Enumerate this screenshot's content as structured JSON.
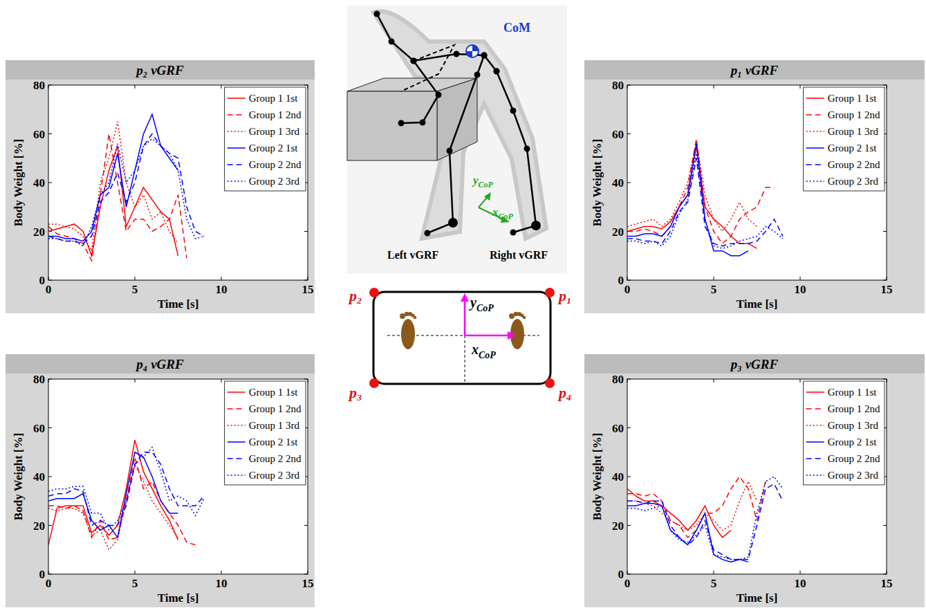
{
  "chart_data": [
    {
      "type": "line",
      "title": "p₂ vGRF",
      "x_label": "Time [s]",
      "y_label": "Body Weight [%]",
      "xlim": [
        0,
        15
      ],
      "ylim": [
        0,
        80
      ],
      "xticks": [
        0,
        5,
        10,
        15
      ],
      "yticks": [
        0,
        20,
        40,
        60,
        80
      ],
      "legend": "upper right",
      "series": [
        {
          "name": "Group 1 1st",
          "color": "#ff0000",
          "line_style": "solid",
          "x": [
            0,
            0.5,
            1,
            1.5,
            2,
            2.5,
            3,
            3.5,
            4,
            4.5,
            5,
            5.5,
            6,
            6.5,
            7,
            7.5
          ],
          "values": [
            20,
            21,
            22,
            23,
            20,
            10,
            30,
            45,
            55,
            22,
            30,
            38,
            33,
            28,
            25,
            10
          ]
        },
        {
          "name": "Group 1 2nd",
          "color": "#ff0000",
          "line_style": "dashed",
          "x": [
            0,
            0.5,
            1,
            1.5,
            2,
            2.5,
            3,
            3.5,
            4,
            4.5,
            5,
            5.5,
            6,
            6.5,
            7,
            7.5,
            8
          ],
          "values": [
            22,
            19,
            18,
            17,
            15,
            8,
            35,
            60,
            40,
            20,
            25,
            25,
            20,
            22,
            25,
            35,
            9
          ]
        },
        {
          "name": "Group 1 3rd",
          "color": "#ff0000",
          "line_style": "dotted",
          "x": [
            0,
            0.5,
            1,
            1.5,
            2,
            2.5,
            3,
            3.5,
            4,
            4.5,
            5,
            5.5,
            6,
            6.5,
            7,
            7.5
          ],
          "values": [
            23,
            23,
            22,
            21,
            18,
            12,
            40,
            50,
            65,
            40,
            30,
            35,
            25,
            28,
            20,
            15
          ]
        },
        {
          "name": "Group 2 1st",
          "color": "#0000ff",
          "line_style": "solid",
          "x": [
            0,
            0.5,
            1,
            1.5,
            2,
            2.5,
            3,
            3.5,
            4,
            4.5,
            5,
            5.5,
            6,
            6.5,
            7,
            7.5
          ],
          "values": [
            18,
            18,
            17,
            17,
            16,
            20,
            35,
            38,
            52,
            30,
            45,
            60,
            68,
            55,
            50,
            45
          ]
        },
        {
          "name": "Group 2 2nd",
          "color": "#0000ff",
          "line_style": "dashed",
          "x": [
            0,
            0.5,
            1,
            1.5,
            2,
            2.5,
            3,
            3.5,
            4,
            4.5,
            5,
            5.5,
            6,
            6.5,
            7,
            7.5,
            8,
            8.5,
            9
          ],
          "values": [
            18,
            17,
            16,
            16,
            15,
            18,
            32,
            36,
            44,
            32,
            40,
            55,
            60,
            55,
            52,
            50,
            30,
            20,
            18
          ]
        },
        {
          "name": "Group 2 3rd",
          "color": "#0000ff",
          "line_style": "dotted",
          "x": [
            0,
            0.5,
            1,
            1.5,
            2,
            2.5,
            3,
            3.5,
            4,
            4.5,
            5,
            5.5,
            6,
            6.5,
            7,
            7.5,
            8,
            8.5,
            9
          ],
          "values": [
            17,
            17,
            16,
            16,
            14,
            22,
            35,
            40,
            56,
            40,
            45,
            55,
            58,
            55,
            52,
            45,
            25,
            17,
            18
          ]
        }
      ]
    },
    {
      "type": "line",
      "title": "p₁ vGRF",
      "x_label": "Time [s]",
      "y_label": "Body Weight [%]",
      "xlim": [
        0,
        15
      ],
      "ylim": [
        0,
        80
      ],
      "xticks": [
        0,
        5,
        10,
        15
      ],
      "yticks": [
        0,
        20,
        40,
        60,
        80
      ],
      "legend": "upper right",
      "series": [
        {
          "name": "Group 1 1st",
          "color": "#ff0000",
          "line_style": "solid",
          "x": [
            0,
            0.5,
            1,
            1.5,
            2,
            2.5,
            3,
            3.5,
            4,
            4.5,
            5,
            5.5,
            6,
            6.5,
            7,
            7.5
          ],
          "values": [
            20,
            21,
            22,
            22,
            21,
            24,
            30,
            35,
            55,
            30,
            25,
            22,
            18,
            15,
            15,
            13
          ]
        },
        {
          "name": "Group 1 2nd",
          "color": "#ff0000",
          "line_style": "dashed",
          "x": [
            0,
            0.5,
            1,
            1.5,
            2,
            2.5,
            3,
            3.5,
            4,
            4.5,
            5,
            5.5,
            6,
            6.5,
            7,
            7.5,
            8,
            8.5
          ],
          "values": [
            20,
            20,
            21,
            20,
            18,
            22,
            30,
            38,
            58,
            30,
            20,
            15,
            18,
            25,
            28,
            30,
            38,
            38
          ]
        },
        {
          "name": "Group 1 3rd",
          "color": "#ff0000",
          "line_style": "dotted",
          "x": [
            0,
            0.5,
            1,
            1.5,
            2,
            2.5,
            3,
            3.5,
            4,
            4.5,
            5,
            5.5,
            6,
            6.5,
            7,
            7.5
          ],
          "values": [
            22,
            23,
            24,
            25,
            22,
            25,
            32,
            40,
            57,
            35,
            25,
            20,
            25,
            32,
            25,
            22
          ]
        },
        {
          "name": "Group 2 1st",
          "color": "#0000ff",
          "line_style": "solid",
          "x": [
            0,
            0.5,
            1,
            1.5,
            2,
            2.5,
            3,
            3.5,
            4,
            4.5,
            5,
            5.5,
            6,
            6.5,
            7
          ],
          "values": [
            18,
            18,
            19,
            19,
            18,
            22,
            30,
            35,
            56,
            25,
            12,
            12,
            10,
            10,
            12
          ]
        },
        {
          "name": "Group 2 2nd",
          "color": "#0000ff",
          "line_style": "dashed",
          "x": [
            0,
            0.5,
            1,
            1.5,
            2,
            2.5,
            3,
            3.5,
            4,
            4.5,
            5,
            5.5,
            6,
            6.5,
            7,
            7.5,
            8,
            8.5,
            9
          ],
          "values": [
            17,
            17,
            16,
            16,
            15,
            20,
            28,
            32,
            50,
            22,
            15,
            14,
            15,
            15,
            15,
            16,
            20,
            25,
            18
          ]
        },
        {
          "name": "Group 2 3rd",
          "color": "#0000ff",
          "line_style": "dotted",
          "x": [
            0,
            0.5,
            1,
            1.5,
            2,
            2.5,
            3,
            3.5,
            4,
            4.5,
            5,
            5.5,
            6,
            6.5,
            7,
            7.5,
            8,
            8.5,
            9
          ],
          "values": [
            16,
            16,
            15,
            16,
            14,
            18,
            27,
            33,
            52,
            25,
            14,
            13,
            14,
            16,
            17,
            18,
            22,
            20,
            17
          ]
        }
      ]
    },
    {
      "type": "line",
      "title": "p₄ vGRF",
      "x_label": "Time [s]",
      "y_label": "Body Weight [%]",
      "xlim": [
        0,
        15
      ],
      "ylim": [
        0,
        80
      ],
      "xticks": [
        0,
        5,
        10,
        15
      ],
      "yticks": [
        0,
        20,
        40,
        60,
        80
      ],
      "legend": "upper right",
      "series": [
        {
          "name": "Group 1 1st",
          "color": "#ff0000",
          "line_style": "solid",
          "x": [
            0,
            0.5,
            1,
            1.5,
            2,
            2.5,
            3,
            3.5,
            4,
            4.5,
            5,
            5.5,
            6,
            6.5,
            7,
            7.5
          ],
          "values": [
            12,
            27,
            28,
            28,
            28,
            17,
            20,
            16,
            20,
            35,
            55,
            42,
            35,
            28,
            22,
            14
          ]
        },
        {
          "name": "Group 1 2nd",
          "color": "#ff0000",
          "line_style": "dashed",
          "x": [
            0,
            0.5,
            1,
            1.5,
            2,
            2.5,
            3,
            3.5,
            4,
            4.5,
            5,
            5.5,
            6,
            6.5,
            7,
            7.5,
            8,
            8.5
          ],
          "values": [
            28,
            28,
            27,
            28,
            26,
            15,
            22,
            14,
            15,
            30,
            48,
            35,
            38,
            30,
            25,
            20,
            13,
            12
          ]
        },
        {
          "name": "Group 1 3rd",
          "color": "#ff0000",
          "line_style": "dotted",
          "x": [
            0,
            0.5,
            1,
            1.5,
            2,
            2.5,
            3,
            3.5,
            4,
            4.5,
            5,
            5.5,
            6,
            6.5,
            7,
            7.5
          ],
          "values": [
            27,
            26,
            27,
            27,
            25,
            16,
            18,
            10,
            14,
            30,
            45,
            38,
            30,
            25,
            20,
            15
          ]
        },
        {
          "name": "Group 2 1st",
          "color": "#0000ff",
          "line_style": "solid",
          "x": [
            0,
            0.5,
            1,
            1.5,
            2,
            2.5,
            3,
            3.5,
            4,
            4.5,
            5,
            5.5,
            6,
            6.5,
            7,
            7.5
          ],
          "values": [
            30,
            31,
            31,
            31,
            33,
            22,
            18,
            20,
            15,
            33,
            50,
            48,
            40,
            30,
            25,
            25
          ]
        },
        {
          "name": "Group 2 2nd",
          "color": "#0000ff",
          "line_style": "dashed",
          "x": [
            0,
            0.5,
            1,
            1.5,
            2,
            2.5,
            3,
            3.5,
            4,
            4.5,
            5,
            5.5,
            6,
            6.5,
            7,
            7.5,
            8,
            8.5,
            9
          ],
          "values": [
            32,
            33,
            33,
            35,
            34,
            20,
            22,
            20,
            20,
            28,
            45,
            50,
            50,
            45,
            35,
            28,
            28,
            28,
            32
          ]
        },
        {
          "name": "Group 2 3rd",
          "color": "#0000ff",
          "line_style": "dotted",
          "x": [
            0,
            0.5,
            1,
            1.5,
            2,
            2.5,
            3,
            3.5,
            4,
            4.5,
            5,
            5.5,
            6,
            6.5,
            7,
            7.5,
            8,
            8.5,
            9
          ],
          "values": [
            34,
            35,
            35,
            36,
            36,
            25,
            25,
            18,
            22,
            30,
            45,
            48,
            52,
            42,
            30,
            32,
            30,
            24,
            31
          ]
        }
      ]
    },
    {
      "type": "line",
      "title": "p₃ vGRF",
      "x_label": "Time [s]",
      "y_label": "Body Weight [%]",
      "xlim": [
        0,
        15
      ],
      "ylim": [
        0,
        80
      ],
      "xticks": [
        0,
        5,
        10,
        15
      ],
      "yticks": [
        0,
        20,
        40,
        60,
        80
      ],
      "legend": "upper right",
      "series": [
        {
          "name": "Group 1 1st",
          "color": "#ff0000",
          "line_style": "solid",
          "x": [
            0,
            0.5,
            1,
            1.5,
            2,
            2.5,
            3,
            3.5,
            4,
            4.5,
            5,
            5.5,
            6
          ],
          "values": [
            35,
            32,
            30,
            30,
            28,
            25,
            22,
            18,
            22,
            28,
            20,
            15,
            18
          ]
        },
        {
          "name": "Group 1 2nd",
          "color": "#ff0000",
          "line_style": "dashed",
          "x": [
            0,
            0.5,
            1,
            1.5,
            2,
            2.5,
            3,
            3.5,
            4,
            4.5,
            5,
            5.5,
            6,
            6.5,
            7,
            7.5,
            8
          ],
          "values": [
            33,
            33,
            32,
            33,
            30,
            22,
            20,
            15,
            18,
            25,
            25,
            28,
            35,
            40,
            35,
            22,
            38
          ]
        },
        {
          "name": "Group 1 3rd",
          "color": "#ff0000",
          "line_style": "dotted",
          "x": [
            0,
            0.5,
            1,
            1.5,
            2,
            2.5,
            3,
            3.5,
            4,
            4.5,
            5,
            5.5,
            6,
            6.5,
            7,
            7.5
          ],
          "values": [
            30,
            30,
            29,
            28,
            25,
            22,
            20,
            18,
            20,
            25,
            22,
            18,
            20,
            30,
            38,
            30
          ]
        },
        {
          "name": "Group 2 1st",
          "color": "#0000ff",
          "line_style": "solid",
          "x": [
            0,
            0.5,
            1,
            1.5,
            2,
            2.5,
            3,
            3.5,
            4,
            4.5,
            5,
            5.5,
            6,
            6.5,
            7
          ],
          "values": [
            28,
            28,
            29,
            29,
            28,
            18,
            15,
            12,
            18,
            25,
            8,
            6,
            5,
            6,
            5
          ]
        },
        {
          "name": "Group 2 2nd",
          "color": "#0000ff",
          "line_style": "dashed",
          "x": [
            0,
            0.5,
            1,
            1.5,
            2,
            2.5,
            3,
            3.5,
            4,
            4.5,
            5,
            5.5,
            6,
            6.5,
            7,
            7.5,
            8,
            8.5,
            9
          ],
          "values": [
            30,
            30,
            29,
            30,
            30,
            20,
            15,
            12,
            15,
            22,
            10,
            8,
            6,
            6,
            6,
            20,
            35,
            37,
            30
          ]
        },
        {
          "name": "Group 2 3rd",
          "color": "#0000ff",
          "line_style": "dotted",
          "x": [
            0,
            0.5,
            1,
            1.5,
            2,
            2.5,
            3,
            3.5,
            4,
            4.5,
            5,
            5.5,
            6,
            6.5,
            7,
            7.5,
            8,
            8.5,
            9
          ],
          "values": [
            27,
            27,
            26,
            27,
            28,
            18,
            14,
            13,
            16,
            20,
            8,
            7,
            6,
            6,
            7,
            25,
            38,
            40,
            35
          ]
        }
      ]
    }
  ],
  "diagram": {
    "com_label": "CoM",
    "left_label": "Left vGRF",
    "right_label": "Right vGRF",
    "body_axes": {
      "y": {
        "symbol": "y",
        "subscript": "CoP"
      },
      "x": {
        "symbol": "x",
        "subscript": "CoP"
      }
    },
    "plate_axes": {
      "y": {
        "symbol": "y",
        "subscript": "CoP"
      },
      "x": {
        "symbol": "x",
        "subscript": "CoP"
      }
    },
    "corners": {
      "top_left": "p₂",
      "top_right": "p₁",
      "bottom_left": "p₃",
      "bottom_right": "p₄"
    }
  }
}
